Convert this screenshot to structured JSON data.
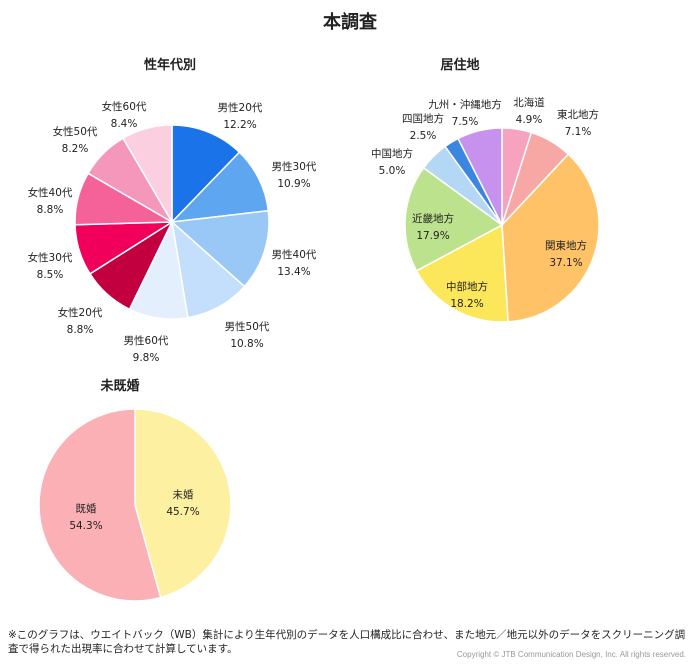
{
  "main_title": "本調査",
  "chart_data": [
    {
      "type": "pie",
      "title": "性年代別",
      "categories": [
        "男性20代",
        "男性30代",
        "男性40代",
        "男性50代",
        "男性60代",
        "女性20代",
        "女性30代",
        "女性40代",
        "女性50代",
        "女性60代"
      ],
      "values": [
        12.2,
        10.9,
        13.4,
        10.8,
        9.8,
        8.8,
        8.5,
        8.8,
        8.2,
        8.4
      ],
      "value_labels": [
        "12.2%",
        "10.9%",
        "13.4%",
        "10.8%",
        "9.8%",
        "8.8%",
        "8.5%",
        "8.8%",
        "8.2%",
        "8.4%"
      ],
      "colors": [
        "#1a73e8",
        "#5ea6f0",
        "#9ac8f6",
        "#c4dffb",
        "#e4effd",
        "#c2003f",
        "#f0005a",
        "#f5629a",
        "#f597bb",
        "#fbcfe0"
      ]
    },
    {
      "type": "pie",
      "title": "居住地",
      "categories": [
        "北海道",
        "東北地方",
        "関東地方",
        "中部地方",
        "近畿地方",
        "中国地方",
        "四国地方",
        "九州・沖縄地方"
      ],
      "values": [
        4.9,
        7.1,
        37.1,
        18.2,
        17.9,
        5.0,
        2.5,
        7.5
      ],
      "value_labels": [
        "4.9%",
        "7.1%",
        "37.1%",
        "18.2%",
        "17.9%",
        "5.0%",
        "2.5%",
        "7.5%"
      ],
      "colors": [
        "#f7a3bf",
        "#f8a8a4",
        "#ffc266",
        "#fce75a",
        "#bde28e",
        "#b4d7f5",
        "#3b86e0",
        "#c792ee"
      ]
    },
    {
      "type": "pie",
      "title": "未既婚",
      "categories": [
        "未婚",
        "既婚"
      ],
      "values": [
        45.7,
        54.3
      ],
      "value_labels": [
        "45.7%",
        "54.3%"
      ],
      "colors": [
        "#fdf0a0",
        "#fab0b4"
      ]
    }
  ],
  "footnote": "※このグラフは、ウエイトバック（WB）集計により生年代別のデータを人口構成比に合わせ、また地元／地元以外のデータをスクリーニング調査で得られた出現率に合わせて計算しています。",
  "copyright": "Copyright © JTB Communication Design, Inc. All rights reserved."
}
